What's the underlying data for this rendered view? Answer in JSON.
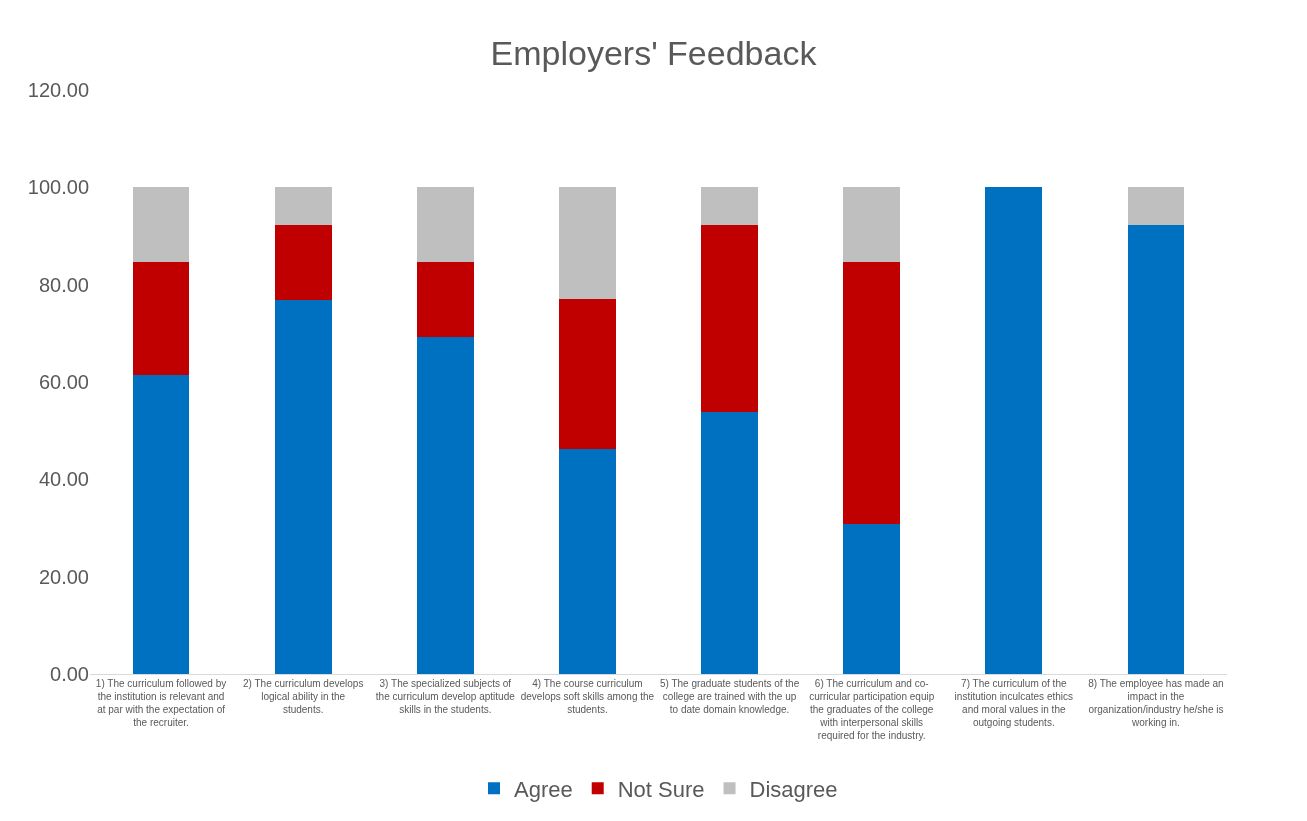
{
  "chart_data": {
    "type": "bar",
    "title": "Employers' Feedback",
    "stacked": true,
    "legend": "bottom",
    "categories": [
      "1) The curriculum followed by the institution is relevant and at par with the expectation of the recruiter.",
      "2) The curriculum develops logical ability in the students.",
      "3) The specialized subjects of the curriculum develop aptitude skills in the students.",
      "4) The course curriculum develops soft skills among the students.",
      "5) The graduate students of the college are trained with the up to date domain knowledge.",
      "6) The curriculum and co-curricular participation equip the graduates of the college with interpersonal skills required for the industry.",
      "7) The curriculum of the institution inculcates ethics and moral values in the outgoing students.",
      "8) The employee has made an impact in the organization/industry he/she is working in."
    ],
    "series": [
      {
        "name": "Agree",
        "color": "#0070c0",
        "values": [
          61.5,
          76.9,
          69.2,
          46.2,
          53.8,
          30.8,
          100,
          92.3
        ]
      },
      {
        "name": "Not Sure",
        "color": "#c00000",
        "values": [
          23.1,
          15.4,
          15.4,
          30.8,
          38.5,
          53.8,
          0,
          0
        ]
      },
      {
        "name": "Disagree",
        "color": "#bfbfbf",
        "values": [
          15.4,
          7.7,
          15.4,
          23.1,
          7.7,
          15.4,
          0,
          7.7
        ]
      }
    ],
    "ylim": [
      0,
      120
    ],
    "yticks": [
      {
        "value": 0,
        "label": "0.00"
      },
      {
        "value": 20,
        "label": "20.00"
      },
      {
        "value": 40,
        "label": "40.00"
      },
      {
        "value": 60,
        "label": "60.00"
      },
      {
        "value": 80,
        "label": "80.00"
      },
      {
        "value": 100,
        "label": "100.00"
      },
      {
        "value": 120,
        "label": "120.00"
      }
    ]
  }
}
